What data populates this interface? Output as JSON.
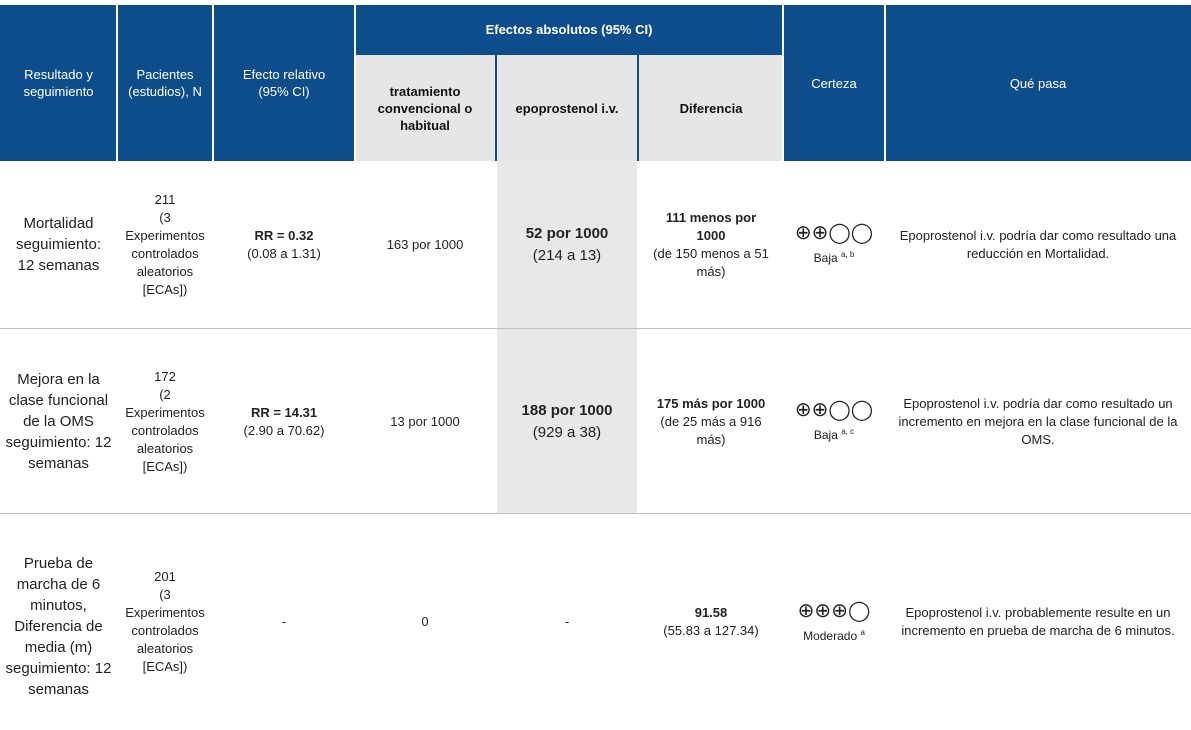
{
  "header": {
    "outcome": "Resultado y seguimiento",
    "patients": "Pacientes (estudios), N",
    "relative_effect": "Efecto relativo (95% CI)",
    "absolute_effects": "Efectos absolutos (95% CI)",
    "control": "tratamiento convencional o habitual",
    "intervention": "epoprostenol i.v.",
    "difference": "Diferencia",
    "certainty": "Certeza",
    "what_happens": "Qué pasa"
  },
  "rows": [
    {
      "outcome": "Mortalidad seguimiento: 12 semanas",
      "patients_n": "211",
      "patients_studies": "(3 Experimentos controlados aleatorios [ECAs])",
      "rr_label": "RR = 0.32",
      "rr_ci": "(0.08 a 1.31)",
      "control": "163 por 1000",
      "intervention_value": "52 por 1000",
      "intervention_ci": "(214 a 13)",
      "difference_value": "111 menos por 1000",
      "difference_ci": "(de 150 menos a 51 más)",
      "certainty_symbols": "⊕⊕◯◯",
      "certainty_label": "Baja",
      "certainty_notes": "a, b",
      "what_happens": "Epoprostenol i.v. podría dar como resultado una reducción en Mortalidad."
    },
    {
      "outcome": "Mejora en la clase funcional de la OMS seguimiento: 12 semanas",
      "patients_n": "172",
      "patients_studies": "(2 Experimentos controlados aleatorios [ECAs])",
      "rr_label": "RR = 14.31",
      "rr_ci": "(2.90 a 70.62)",
      "control": "13 por 1000",
      "intervention_value": "188 por 1000",
      "intervention_ci": "(929 a 38)",
      "difference_value": "175 más por 1000",
      "difference_ci": "(de 25 más a 916 más)",
      "certainty_symbols": "⊕⊕◯◯",
      "certainty_label": "Baja",
      "certainty_notes": "a, c",
      "what_happens": "Epoprostenol i.v. podría dar como resultado un incremento en mejora en la clase funcional de la OMS."
    },
    {
      "outcome": "Prueba de marcha de 6 minutos, Diferencia de media (m) seguimiento: 12 semanas",
      "patients_n": "201",
      "patients_studies": "(3 Experimentos controlados aleatorios [ECAs])",
      "rr_label": "",
      "rr_ci": "-",
      "control": "0",
      "intervention_value": "",
      "intervention_ci": "-",
      "difference_value": "91.58",
      "difference_ci": "(55.83 a 127.34)",
      "certainty_symbols": "⊕⊕⊕◯",
      "certainty_label": "Moderado",
      "certainty_notes": "a",
      "what_happens": "Epoprostenol i.v. probablemente resulte en un incremento en prueba de marcha de 6 minutos."
    }
  ]
}
